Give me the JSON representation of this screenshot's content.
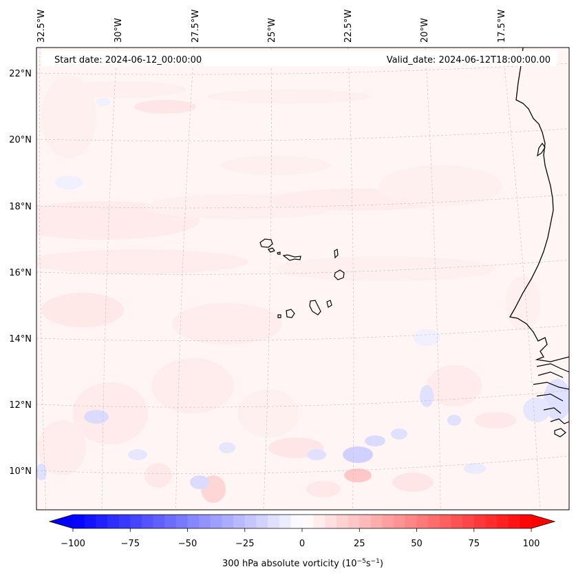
{
  "map": {
    "start_label": "Start date: 2024-06-12_00:00:00",
    "valid_label": "Valid_date: 2024-06-12T18:00:00.00",
    "lon_labels": [
      "32.5°W",
      "30°W",
      "27.5°W",
      "25°W",
      "22.5°W",
      "20°W",
      "17.5°W"
    ],
    "lat_labels": [
      "22°N",
      "20°N",
      "18°N",
      "16°N",
      "14°N",
      "12°N",
      "10°N"
    ]
  },
  "colorbar": {
    "ticks": [
      "−100",
      "−75",
      "−50",
      "−25",
      "0",
      "25",
      "50",
      "75",
      "100"
    ],
    "label": "300 hPa absolute vorticity",
    "label_units": "(10",
    "label_exp1": "−5",
    "label_mid": "s",
    "label_exp2": "−1",
    "label_end": ")",
    "min": -100,
    "max": 100,
    "neg_color": "#0000ff",
    "pos_color": "#ff0000",
    "mid_color": "#ffffff"
  },
  "colors": {
    "land_outline": "#000000",
    "gridline": "#bdbdbd",
    "field_base": "#fff5f5"
  }
}
